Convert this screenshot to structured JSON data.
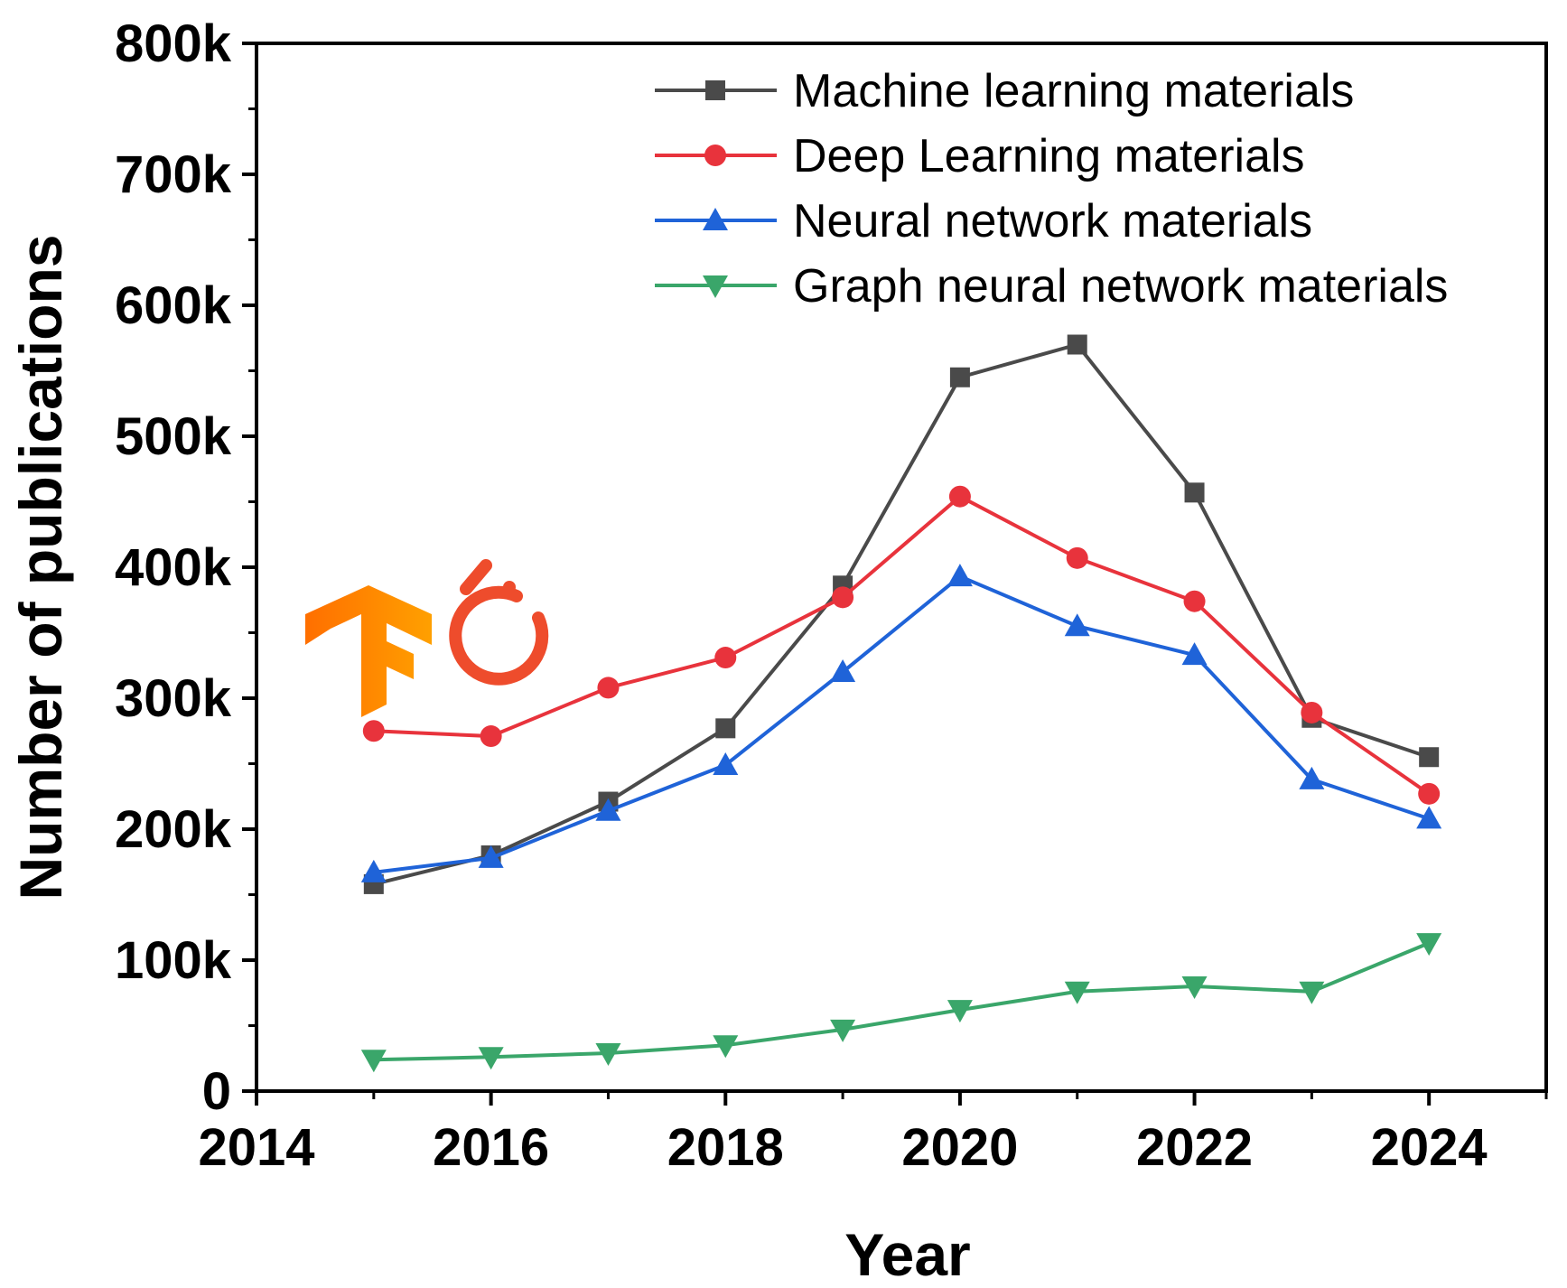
{
  "chart_data": {
    "type": "line",
    "title": "",
    "xlabel": "Year",
    "ylabel": "Number of publications",
    "xlim": [
      2014,
      2025
    ],
    "ylim": [
      0,
      800000
    ],
    "x_ticks": [
      2014,
      2016,
      2018,
      2020,
      2022,
      2024
    ],
    "x_tick_labels": [
      "2014",
      "2016",
      "2018",
      "2020",
      "2022",
      "2024"
    ],
    "y_ticks": [
      0,
      100000,
      200000,
      300000,
      400000,
      500000,
      600000,
      700000,
      800000
    ],
    "y_tick_labels": [
      "0",
      "100k",
      "200k",
      "300k",
      "400k",
      "500k",
      "600k",
      "700k",
      "800k"
    ],
    "grid": false,
    "legend_position": "top-right",
    "x": [
      2015,
      2016,
      2017,
      2018,
      2019,
      2020,
      2021,
      2022,
      2023,
      2024
    ],
    "series": [
      {
        "name": "Machine learning materials",
        "color": "#4a4a4a",
        "marker": "square",
        "values": [
          158000,
          180000,
          221000,
          277000,
          386000,
          545000,
          570000,
          457000,
          285000,
          255000
        ]
      },
      {
        "name": "Deep Learning materials",
        "color": "#e8333c",
        "marker": "circle",
        "values": [
          275000,
          271000,
          308000,
          331000,
          377000,
          454000,
          407000,
          374000,
          289000,
          227000
        ]
      },
      {
        "name": "Neural network materials",
        "color": "#1f63d8",
        "marker": "triangle-up",
        "values": [
          167000,
          178000,
          214000,
          249000,
          320000,
          393000,
          355000,
          333000,
          238000,
          208000
        ]
      },
      {
        "name": "Graph neural network materials",
        "color": "#3aa66a",
        "marker": "triangle-down",
        "values": [
          24000,
          26000,
          29000,
          35000,
          47000,
          62000,
          76000,
          80000,
          76000,
          113000
        ]
      }
    ],
    "logos": [
      {
        "icon": "tensorflow-logo-icon",
        "colors": [
          "#ff6f00",
          "#ffa000"
        ]
      },
      {
        "icon": "pytorch-logo-icon",
        "color": "#ee4c2c"
      }
    ]
  }
}
